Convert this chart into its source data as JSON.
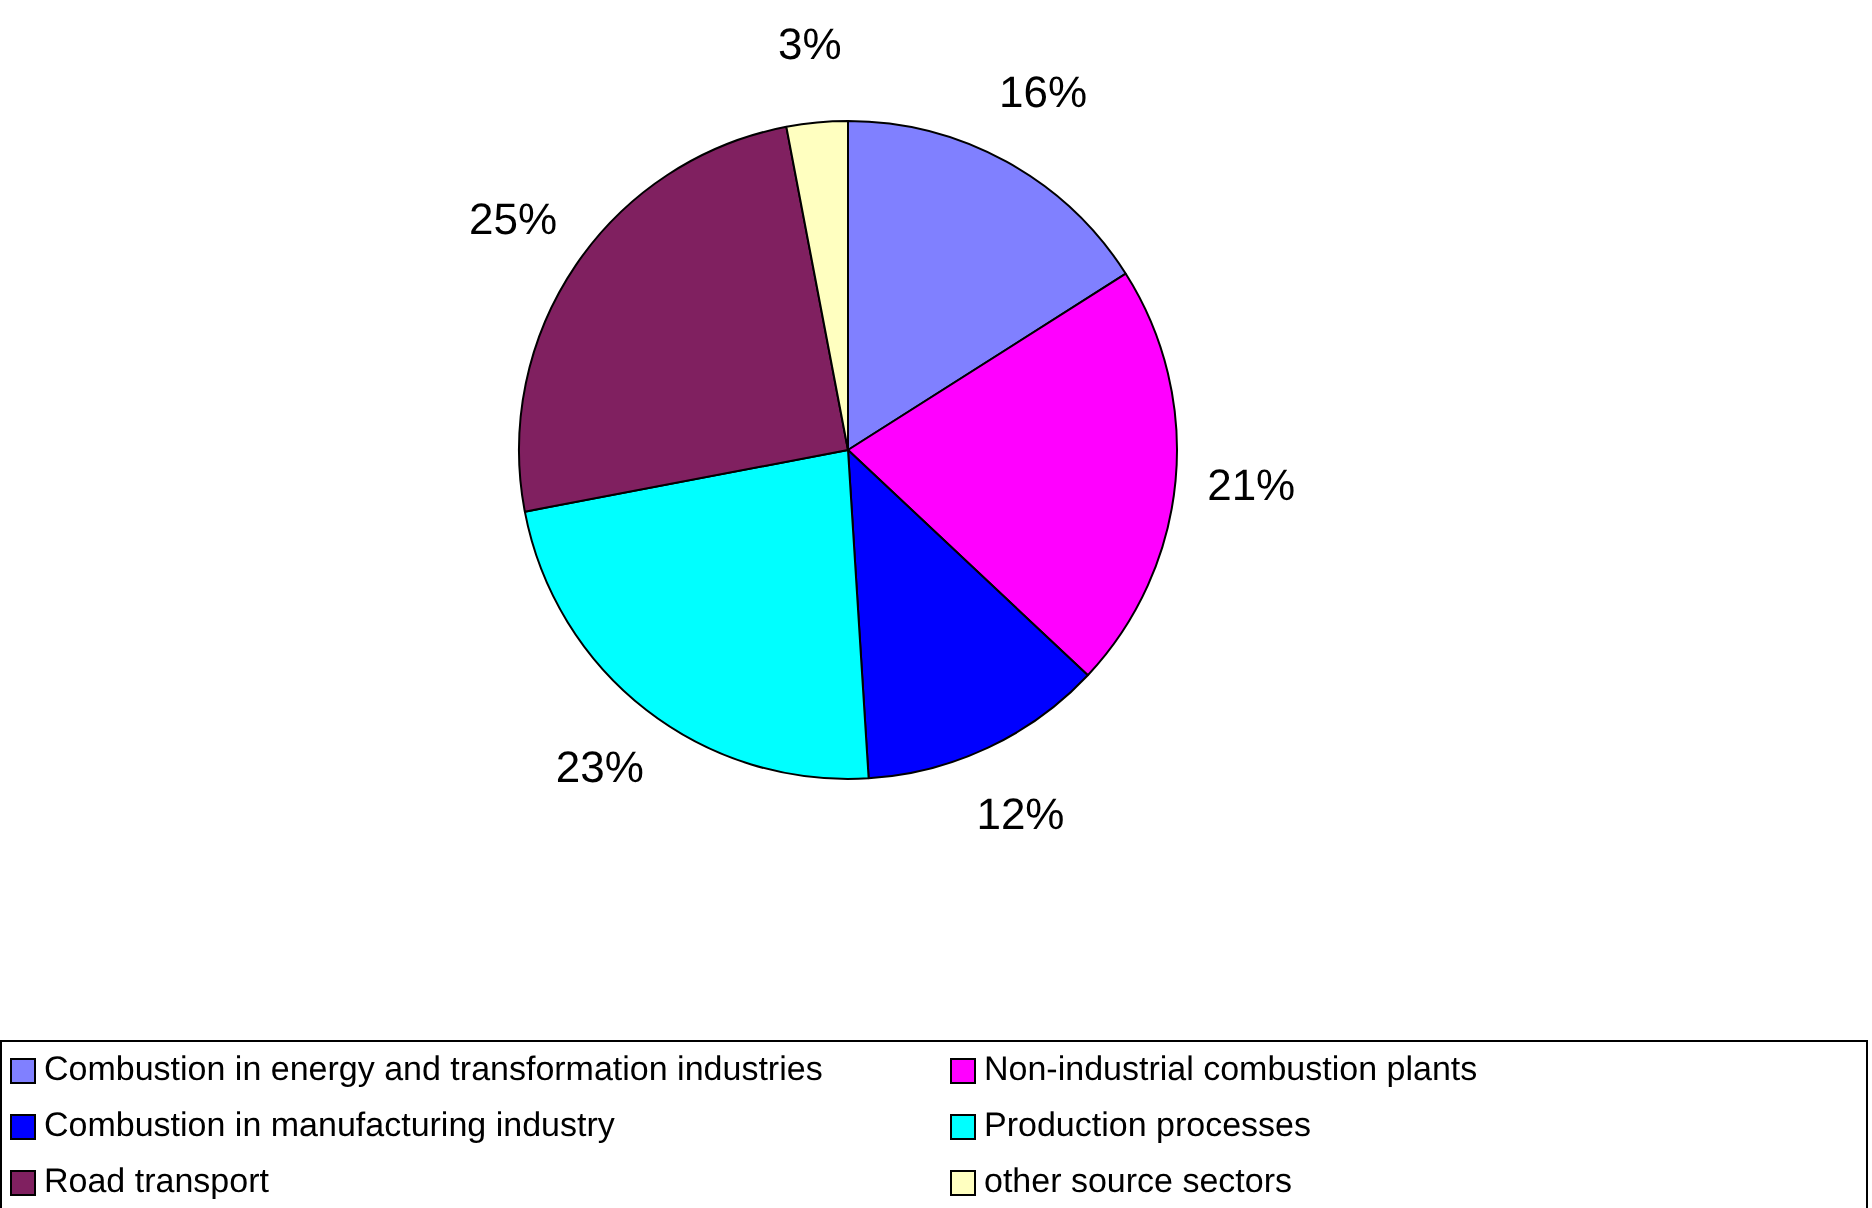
{
  "chart_data": {
    "type": "pie",
    "categories": [
      "Combustion in energy and transformation industries",
      "Non-industrial combustion plants",
      "Combustion in manufacturing industry",
      "Production processes",
      "Road transport",
      "other source sectors"
    ],
    "values": [
      16,
      21,
      12,
      23,
      25,
      3
    ],
    "colors": [
      "#8080ff",
      "#ff00ff",
      "#0000ff",
      "#00ffff",
      "#802060",
      "#ffffc0"
    ],
    "value_labels": [
      "16%",
      "21%",
      "12%",
      "23%",
      "25%",
      "3%"
    ],
    "legend": "bottom"
  }
}
